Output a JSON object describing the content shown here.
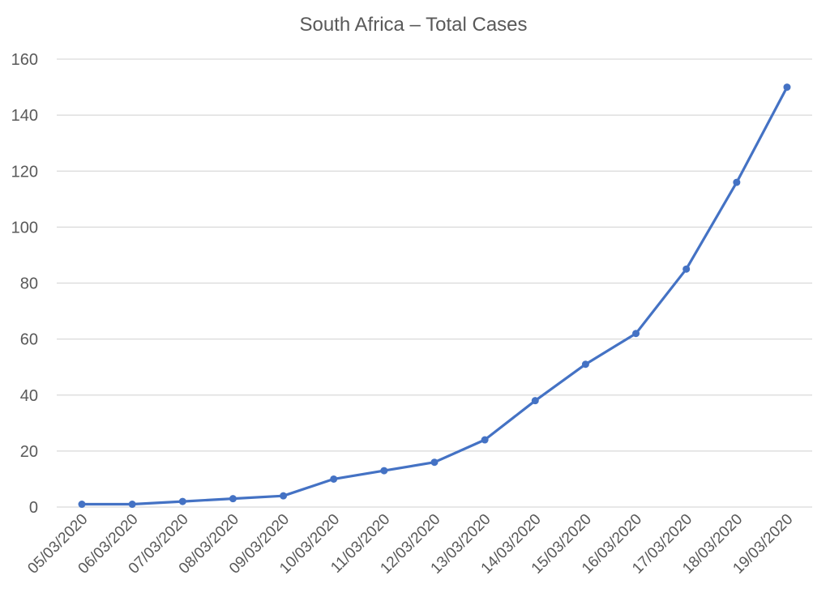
{
  "chart_data": {
    "type": "line",
    "title": "South Africa – Total Cases",
    "xlabel": "",
    "ylabel": "",
    "categories": [
      "05/03/2020",
      "06/03/2020",
      "07/03/2020",
      "08/03/2020",
      "09/03/2020",
      "10/03/2020",
      "11/03/2020",
      "12/03/2020",
      "13/03/2020",
      "14/03/2020",
      "15/03/2020",
      "16/03/2020",
      "17/03/2020",
      "18/03/2020",
      "19/03/2020"
    ],
    "series": [
      {
        "values": [
          1,
          1,
          2,
          3,
          4,
          10,
          13,
          16,
          24,
          38,
          51,
          62,
          85,
          116,
          150
        ]
      }
    ],
    "ylim": [
      0,
      160
    ],
    "yticks": [
      0,
      20,
      40,
      60,
      80,
      100,
      120,
      140,
      160
    ],
    "grid": "horizontal",
    "legend": "none",
    "colors": {
      "series": "#4472c4",
      "grid": "#d9d9d9",
      "text": "#595959"
    }
  }
}
